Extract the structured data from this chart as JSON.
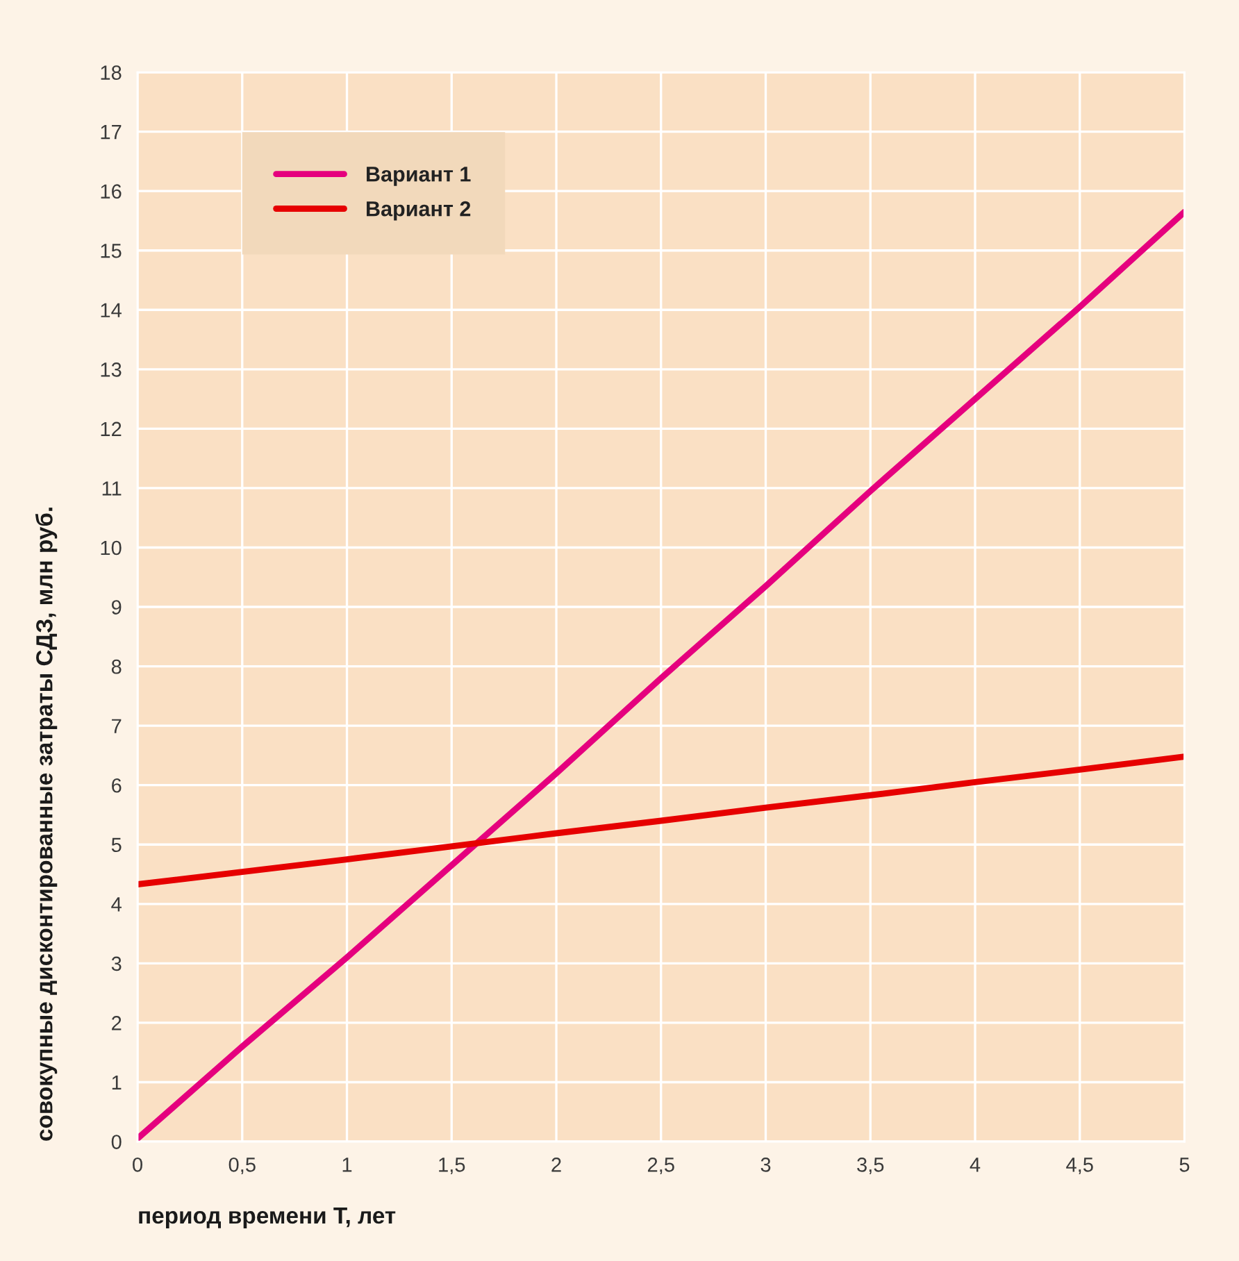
{
  "chart_data": {
    "type": "line",
    "xlabel": "период времени T, лет",
    "ylabel": "совокупные дисконтированные затраты СДЗ, млн руб.",
    "x": [
      0,
      0.5,
      1,
      1.5,
      2,
      2.5,
      3,
      3.5,
      4,
      4.5,
      5
    ],
    "series": [
      {
        "name": "Вариант 1",
        "color": "#e5007e",
        "values": [
          0.05,
          1.6,
          3.1,
          4.65,
          6.2,
          7.8,
          9.35,
          10.95,
          12.5,
          14.05,
          15.65
        ]
      },
      {
        "name": "Вариант 2",
        "color": "#e60000",
        "values": [
          4.33,
          4.54,
          4.75,
          4.97,
          5.19,
          5.4,
          5.62,
          5.83,
          6.05,
          6.26,
          6.48
        ]
      }
    ],
    "xlim": [
      0,
      5
    ],
    "ylim": [
      0,
      18
    ],
    "xticks": [
      0,
      {
        "value": 0.5,
        "label": "0,5"
      },
      1,
      {
        "value": 1.5,
        "label": "1,5"
      },
      2,
      {
        "value": 2.5,
        "label": "2,5"
      },
      3,
      {
        "value": 3.5,
        "label": "3,5"
      },
      4,
      {
        "value": 4.5,
        "label": "4,5"
      },
      5
    ],
    "yticks": [
      0,
      1,
      2,
      3,
      4,
      5,
      6,
      7,
      8,
      9,
      10,
      11,
      12,
      13,
      14,
      15,
      16,
      17,
      18
    ],
    "grid": true,
    "legend": "top left"
  }
}
